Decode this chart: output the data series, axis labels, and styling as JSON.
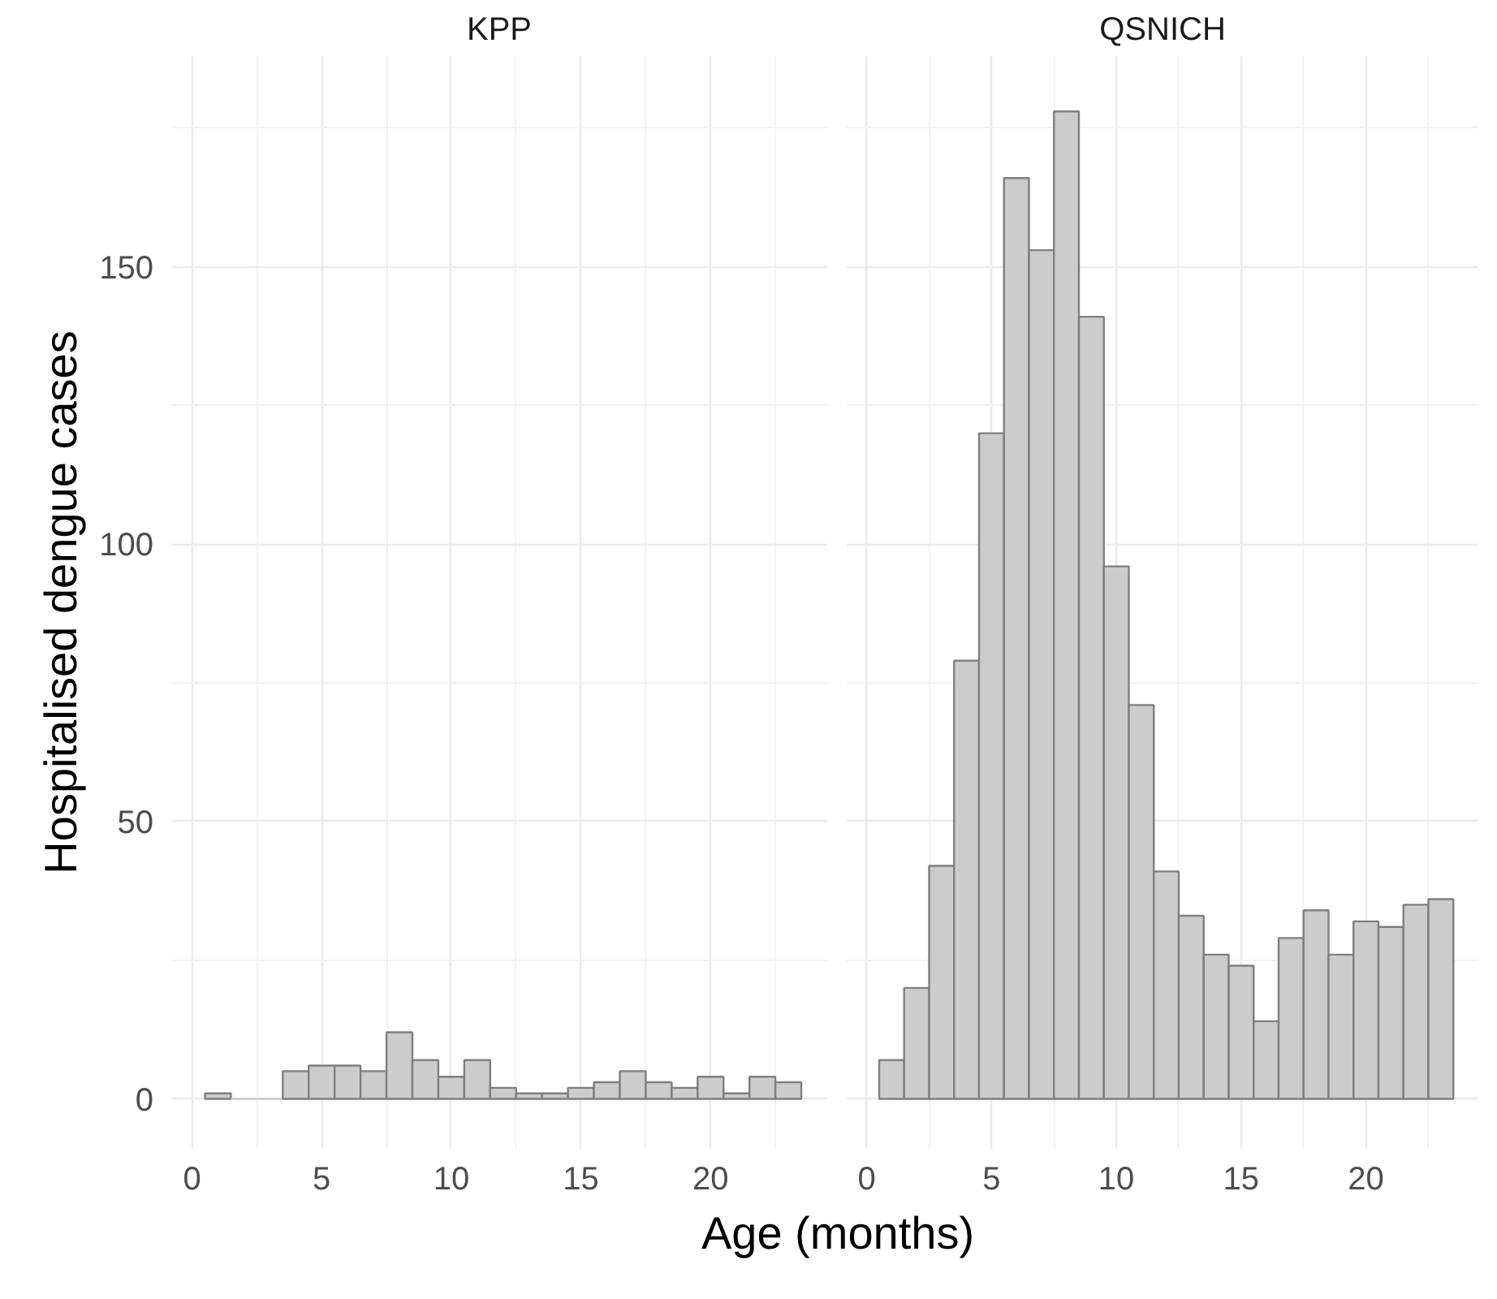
{
  "chart_data": [
    {
      "type": "histogram",
      "title": "KPP",
      "ylabel": "Hospitalised dengue cases",
      "xlabel": "Age (months)",
      "color": "#cccccc",
      "bins": [
        0.5,
        1.5,
        2.5,
        3.5,
        4.5,
        5.5,
        6.5,
        7.5,
        8.5,
        9.5,
        10.5,
        11.5,
        12.5,
        13.5,
        14.5,
        15.5,
        16.5,
        17.5,
        18.5,
        19.5,
        20.5,
        21.5,
        22.5,
        23.5
      ],
      "values": [
        1,
        0,
        0,
        5,
        6,
        6,
        5,
        12,
        7,
        4,
        7,
        2,
        1,
        1,
        2,
        3,
        5,
        3,
        2,
        4,
        1,
        4,
        3
      ],
      "xlim": [
        -0.8,
        24.5
      ],
      "ylim": [
        -9,
        188
      ],
      "xticks": [
        0,
        5,
        10,
        15,
        20
      ],
      "yticks": [
        0,
        50,
        100,
        150
      ],
      "grid": true
    },
    {
      "type": "histogram",
      "title": "QSNICH",
      "color": "#cccccc",
      "bins": [
        0.5,
        1.5,
        2.5,
        3.5,
        4.5,
        5.5,
        6.5,
        7.5,
        8.5,
        9.5,
        10.5,
        11.5,
        12.5,
        13.5,
        14.5,
        15.5,
        16.5,
        17.5,
        18.5,
        19.5,
        20.5,
        21.5,
        22.5,
        23.5
      ],
      "values": [
        7,
        20,
        42,
        79,
        120,
        166,
        153,
        178,
        141,
        96,
        71,
        41,
        33,
        26,
        24,
        14,
        29,
        34,
        26,
        32,
        31,
        35,
        36
      ],
      "xlim": [
        -0.8,
        24.5
      ],
      "ylim": [
        -9,
        188
      ],
      "xticks": [
        0,
        5,
        10,
        15,
        20
      ],
      "yticks": [
        0,
        50,
        100,
        150
      ],
      "grid": true,
      "tick_labels": "x"
    }
  ]
}
